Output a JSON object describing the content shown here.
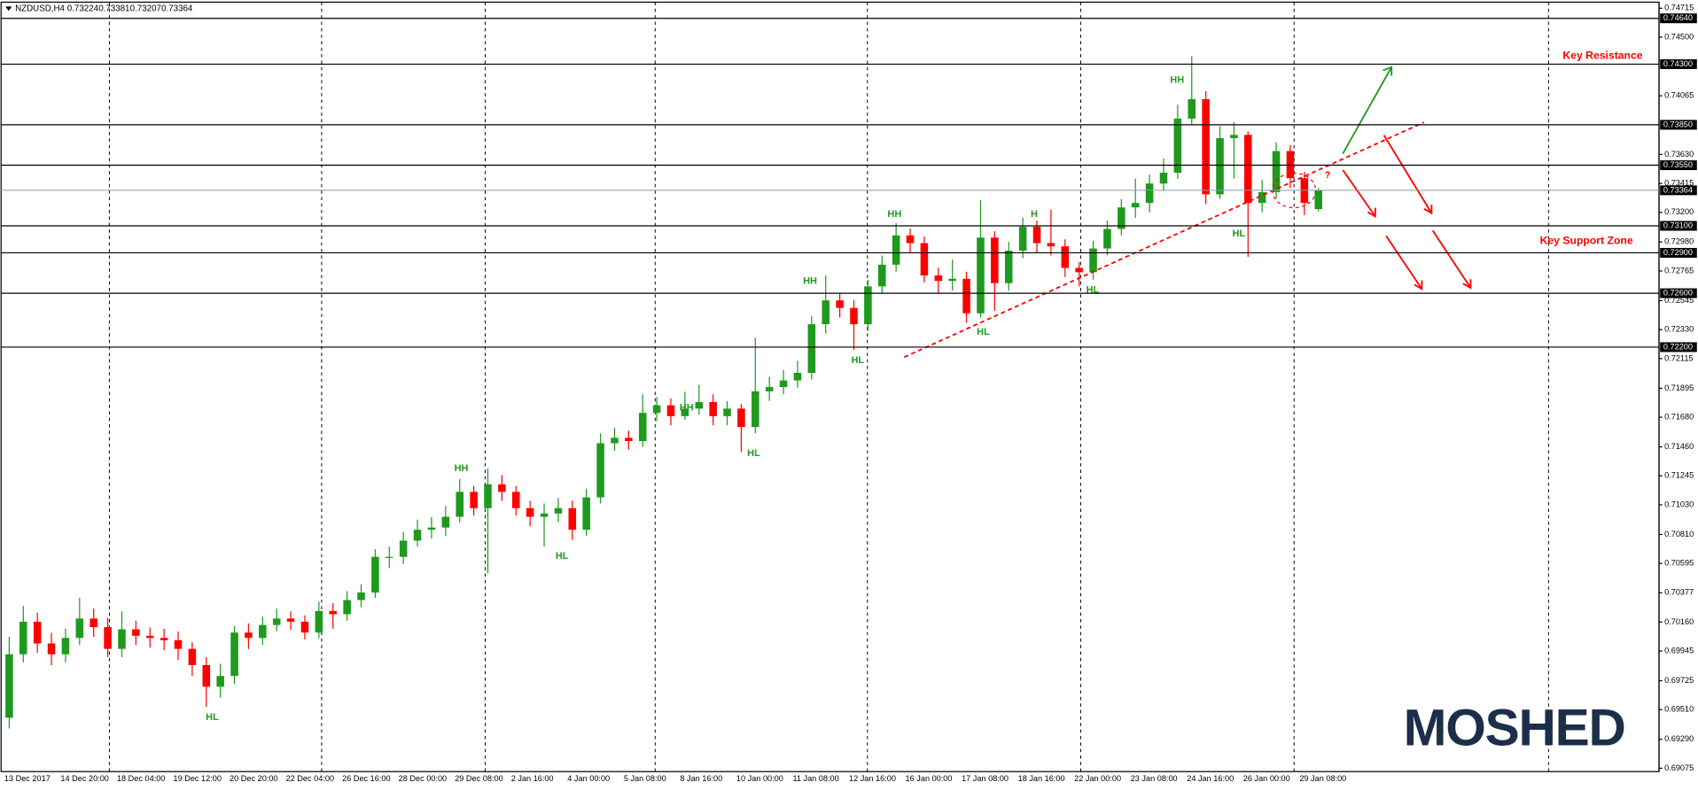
{
  "chart_data": {
    "type": "candlestick",
    "symbol": "NZDUSD,H4",
    "categories": [
      "13 Dec 2017",
      null,
      null,
      null,
      "14 Dec 20:00",
      null,
      null,
      null,
      "18 Dec 04:00",
      null,
      null,
      null,
      "19 Dec 12:00",
      null,
      null,
      null,
      "20 Dec 20:00",
      null,
      null,
      null,
      "22 Dec 04:00",
      null,
      null,
      null,
      "26 Dec 16:00",
      null,
      null,
      null,
      "28 Dec 00:00",
      null,
      null,
      null,
      "29 Dec 08:00",
      null,
      null,
      null,
      "2 Jan 16:00",
      null,
      null,
      null,
      "4 Jan 00:00",
      null,
      null,
      null,
      "5 Jan 08:00",
      null,
      null,
      null,
      "8 Jan 16:00",
      null,
      null,
      null,
      "10 Jan 00:00",
      null,
      null,
      null,
      "11 Jan 08:00",
      null,
      null,
      null,
      "12 Jan 16:00",
      null,
      null,
      null,
      "16 Jan 00:00",
      null,
      null,
      null,
      "17 Jan 08:00",
      null,
      null,
      null,
      "18 Jan 16:00",
      null,
      null,
      null,
      "22 Jan 00:00",
      null,
      null,
      null,
      "23 Jan 08:00",
      null,
      null,
      null,
      "24 Jan 16:00",
      null,
      null,
      null,
      "26 Jan 00:00",
      null,
      null,
      null,
      "29 Jan 08:00",
      null
    ],
    "open": [
      0.6945,
      0.69921,
      0.70162,
      0.70001,
      0.69921,
      0.70042,
      0.70186,
      0.70122,
      0.69961,
      0.70106,
      0.70058,
      0.70042,
      0.70025,
      0.69961,
      0.69841,
      0.6968,
      0.6976,
      0.70082,
      0.70042,
      0.70138,
      0.70186,
      0.70162,
      0.70082,
      0.70242,
      0.70218,
      0.70323,
      0.70379,
      0.70644,
      0.70644,
      0.70764,
      0.70845,
      0.70861,
      0.70941,
      0.71126,
      0.71005,
      0.71182,
      0.71126,
      0.71005,
      0.70941,
      0.70965,
      0.71005,
      0.70845,
      0.71085,
      0.71487,
      0.71527,
      0.71503,
      0.71712,
      0.71768,
      0.71688,
      0.71744,
      0.71792,
      0.71688,
      0.71744,
      0.71607,
      0.71872,
      0.71904,
      0.71953,
      0.72009,
      0.7237,
      0.72547,
      0.72491,
      0.7237,
      0.72651,
      0.72812,
      0.73029,
      0.72972,
      0.72732,
      0.72691,
      0.72707,
      0.72451,
      0.73013,
      0.72675,
      0.72916,
      0.73093,
      0.72972,
      0.72948,
      0.72788,
      0.72756,
      0.72932,
      0.73077,
      0.73237,
      0.7327,
      0.73414,
      0.73494,
      0.73896,
      0.7404,
      0.73334,
      0.73751,
      0.73775,
      0.7327,
      0.7335,
      0.73655,
      0.73454,
      0.73224
    ],
    "high": [
      0.7005,
      0.7028,
      0.7023,
      0.7008,
      0.7011,
      0.7034,
      0.7026,
      0.7019,
      0.7024,
      0.7017,
      0.7012,
      0.7011,
      0.7009,
      0.7001,
      0.699,
      0.6985,
      0.7013,
      0.7015,
      0.702,
      0.7026,
      0.7024,
      0.7021,
      0.7031,
      0.703,
      0.7039,
      0.7044,
      0.707,
      0.7072,
      0.7083,
      0.7092,
      0.7094,
      0.7102,
      0.7122,
      0.7117,
      0.713,
      0.7125,
      0.7117,
      0.7106,
      0.7104,
      0.7108,
      0.7106,
      0.7115,
      0.7156,
      0.716,
      0.7158,
      0.7185,
      0.7183,
      0.7182,
      0.7187,
      0.7192,
      0.7185,
      0.718,
      0.7178,
      0.7227,
      0.7198,
      0.7203,
      0.721,
      0.7243,
      0.7273,
      0.726,
      0.7255,
      0.727,
      0.7288,
      0.7312,
      0.7308,
      0.7302,
      0.7279,
      0.7285,
      0.7276,
      0.7329,
      0.7306,
      0.7298,
      0.7316,
      0.7314,
      0.7322,
      0.73,
      0.7283,
      0.7299,
      0.7314,
      0.733,
      0.7345,
      0.7348,
      0.736,
      0.74,
      0.7436,
      0.741,
      0.7384,
      0.7387,
      0.738,
      0.7344,
      0.7372,
      0.737,
      0.735,
      0.73381
    ],
    "low": [
      0.6937,
      0.6986,
      0.6993,
      0.6984,
      0.6986,
      0.6999,
      0.7005,
      0.699,
      0.699,
      0.6999,
      0.6997,
      0.6995,
      0.6988,
      0.6976,
      0.6953,
      0.696,
      0.697,
      0.6996,
      0.6999,
      0.7009,
      0.701,
      0.7003,
      0.7004,
      0.7011,
      0.7017,
      0.7027,
      0.7034,
      0.7056,
      0.7059,
      0.7072,
      0.7078,
      0.708,
      0.709,
      0.7095,
      0.7052,
      0.7106,
      0.7095,
      0.7087,
      0.7072,
      0.709,
      0.7077,
      0.708,
      0.7104,
      0.7143,
      0.7144,
      0.7146,
      0.7165,
      0.7162,
      0.7166,
      0.717,
      0.7162,
      0.7162,
      0.7142,
      0.7156,
      0.718,
      0.7185,
      0.719,
      0.7196,
      0.723,
      0.7242,
      0.7218,
      0.7232,
      0.726,
      0.7276,
      0.729,
      0.7268,
      0.726,
      0.7262,
      0.7238,
      0.7242,
      0.7247,
      0.7262,
      0.7286,
      0.729,
      0.7288,
      0.7272,
      0.7265,
      0.727,
      0.7288,
      0.7303,
      0.7316,
      0.732,
      0.7336,
      0.7345,
      0.7385,
      0.7326,
      0.733,
      0.7345,
      0.7287,
      0.732,
      0.733,
      0.7338,
      0.7318,
      0.73207
    ],
    "close": [
      0.69921,
      0.70162,
      0.70001,
      0.69921,
      0.70042,
      0.70186,
      0.70122,
      0.69961,
      0.70106,
      0.70058,
      0.70042,
      0.70025,
      0.69961,
      0.69841,
      0.6968,
      0.6976,
      0.70082,
      0.70042,
      0.70138,
      0.70186,
      0.70162,
      0.70082,
      0.70242,
      0.70218,
      0.70323,
      0.70379,
      0.70644,
      0.70644,
      0.70764,
      0.70845,
      0.70861,
      0.70941,
      0.71126,
      0.71005,
      0.71182,
      0.71126,
      0.71005,
      0.70941,
      0.70965,
      0.71005,
      0.70845,
      0.71085,
      0.71487,
      0.71527,
      0.71503,
      0.71712,
      0.71768,
      0.71688,
      0.71744,
      0.71792,
      0.71688,
      0.71744,
      0.71607,
      0.71872,
      0.71904,
      0.71953,
      0.72009,
      0.7237,
      0.72547,
      0.72491,
      0.7237,
      0.72651,
      0.72812,
      0.73029,
      0.72972,
      0.72732,
      0.72691,
      0.72707,
      0.72451,
      0.73013,
      0.72675,
      0.72916,
      0.73093,
      0.72972,
      0.72948,
      0.72788,
      0.72756,
      0.72932,
      0.73077,
      0.73237,
      0.7327,
      0.73414,
      0.73494,
      0.73896,
      0.7404,
      0.73334,
      0.73751,
      0.73775,
      0.7327,
      0.7335,
      0.73655,
      0.73454,
      0.7327,
      0.73364
    ],
    "up_color": "#1e9a1e",
    "down_color": "#ff0000",
    "ylim": [
      0.6905,
      0.7476
    ],
    "yticks": [
      0.74715,
      {
        "value": 0.745,
        "label": "0.74500"
      },
      0.74065,
      {
        "value": 0.7363,
        "label": "0.73630"
      },
      0.73415,
      {
        "value": 0.732,
        "label": "0.73200"
      },
      {
        "value": 0.7298,
        "label": "0.72980"
      },
      0.72765,
      0.72545,
      {
        "value": 0.7233,
        "label": "0.72330"
      },
      0.72115,
      0.71895,
      {
        "value": 0.7168,
        "label": "0.71680"
      },
      {
        "value": 0.7146,
        "label": "0.71460"
      },
      0.71245,
      {
        "value": 0.7103,
        "label": "0.71030"
      },
      {
        "value": 0.7081,
        "label": "0.70810"
      },
      0.70595,
      0.70377,
      {
        "value": 0.7016,
        "label": "0.70160"
      },
      0.69945,
      0.69725,
      {
        "value": 0.6951,
        "label": "0.69510"
      },
      {
        "value": 0.6929,
        "label": "0.69290"
      },
      0.69075
    ],
    "levels": [
      {
        "value": 0.7464,
        "label": "0.74640"
      },
      {
        "value": 0.743,
        "label": "0.74300"
      },
      {
        "value": 0.7385,
        "label": "0.73850"
      },
      {
        "value": 0.7355,
        "label": "0.73550"
      },
      {
        "value": 0.731,
        "label": "0.73100"
      },
      {
        "value": 0.729,
        "label": "0.72900"
      },
      {
        "value": 0.726,
        "label": "0.72600"
      },
      {
        "value": 0.722,
        "label": "0.72200"
      }
    ],
    "annotations": [
      "HL",
      "HH",
      "HL",
      "HH",
      "HL",
      "HH",
      "HL",
      "HH",
      "HL",
      "H",
      "HL",
      "HH",
      "HL",
      "?",
      "Key Resistance",
      "Key Support Zone"
    ],
    "watermark": "MOSHED"
  }
}
